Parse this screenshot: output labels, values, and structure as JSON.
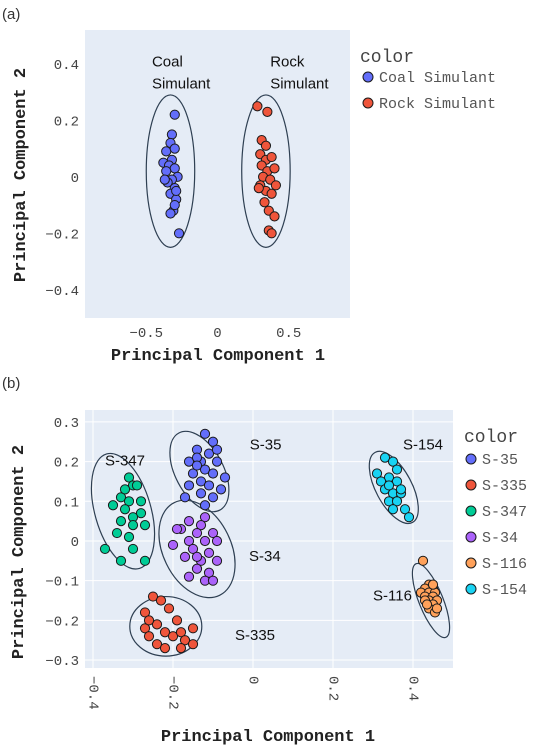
{
  "chart_data": [
    {
      "type": "scatter",
      "panel_label": "(a)",
      "xlabel": "Principal Component 1",
      "ylabel": "Principal Component 2",
      "xlim": [
        -0.93,
        0.93
      ],
      "ylim": [
        -0.5,
        0.52
      ],
      "xticks": [
        -0.5,
        0,
        0.5
      ],
      "xtick_labels": [
        "−0.5",
        "0",
        "0.5"
      ],
      "yticks": [
        0.4,
        0.2,
        0,
        -0.2,
        -0.4
      ],
      "ytick_labels": [
        "0.4",
        "0.2",
        "0",
        "−0.2",
        "−0.4"
      ],
      "grid": false,
      "legend_title": "color",
      "legend_position": "right",
      "annotations": [
        {
          "lines": [
            "Coal",
            "Simulant"
          ],
          "x": -0.46,
          "y": 0.39
        },
        {
          "lines": [
            "Rock",
            "Simulant"
          ],
          "x": 0.37,
          "y": 0.39
        }
      ],
      "ellipses": [
        {
          "cx": -0.33,
          "cy": 0.02,
          "rx": 0.17,
          "ry": 0.27
        },
        {
          "cx": 0.34,
          "cy": 0.02,
          "rx": 0.17,
          "ry": 0.27
        }
      ],
      "series": [
        {
          "name": "Coal Simulant",
          "color": "#636efa",
          "points": [
            [
              -0.3,
              0.22
            ],
            [
              -0.32,
              0.15
            ],
            [
              -0.33,
              0.12
            ],
            [
              -0.36,
              0.09
            ],
            [
              -0.3,
              0.1
            ],
            [
              -0.32,
              0.06
            ],
            [
              -0.38,
              0.05
            ],
            [
              -0.34,
              0.04
            ],
            [
              -0.3,
              0.03
            ],
            [
              -0.28,
              0.0
            ],
            [
              -0.32,
              -0.01
            ],
            [
              -0.36,
              0.02
            ],
            [
              -0.35,
              -0.02
            ],
            [
              -0.3,
              -0.04
            ],
            [
              -0.33,
              -0.06
            ],
            [
              -0.29,
              -0.08
            ],
            [
              -0.31,
              -0.12
            ],
            [
              -0.3,
              -0.1
            ],
            [
              -0.33,
              -0.13
            ],
            [
              -0.27,
              -0.2
            ],
            [
              -0.37,
              -0.01
            ],
            [
              -0.29,
              -0.05
            ]
          ]
        },
        {
          "name": "Rock Simulant",
          "color": "#ef553b",
          "points": [
            [
              0.28,
              0.25
            ],
            [
              0.35,
              0.23
            ],
            [
              0.31,
              0.13
            ],
            [
              0.34,
              0.11
            ],
            [
              0.3,
              0.08
            ],
            [
              0.34,
              0.06
            ],
            [
              0.38,
              0.07
            ],
            [
              0.31,
              0.04
            ],
            [
              0.35,
              0.02
            ],
            [
              0.32,
              0.0
            ],
            [
              0.37,
              -0.01
            ],
            [
              0.3,
              -0.03
            ],
            [
              0.34,
              -0.05
            ],
            [
              0.38,
              -0.06
            ],
            [
              0.33,
              -0.09
            ],
            [
              0.36,
              -0.12
            ],
            [
              0.4,
              -0.14
            ],
            [
              0.36,
              -0.19
            ],
            [
              0.38,
              -0.2
            ],
            [
              0.4,
              0.03
            ],
            [
              0.29,
              -0.04
            ],
            [
              0.41,
              -0.03
            ]
          ]
        }
      ]
    },
    {
      "type": "scatter",
      "panel_label": "(b)",
      "xlabel": "Principal Component 1",
      "ylabel": "Principal Component 2",
      "xlim": [
        -0.42,
        0.5
      ],
      "ylim": [
        -0.32,
        0.33
      ],
      "xticks": [
        -0.4,
        -0.2,
        0,
        0.2,
        0.4
      ],
      "xtick_labels": [
        "−0.4",
        "−0.2",
        "0",
        "0.2",
        "0.4"
      ],
      "yticks": [
        0.3,
        0.2,
        0.1,
        0,
        -0.1,
        -0.2,
        -0.3
      ],
      "ytick_labels": [
        "0.3",
        "0.2",
        "0.1",
        "0",
        "−0.1",
        "−0.2",
        "−0.3"
      ],
      "grid": true,
      "legend_title": "color",
      "legend_position": "right",
      "annotations": [
        {
          "lines": [
            "S-35"
          ],
          "x": -0.008,
          "y": 0.23
        },
        {
          "lines": [
            "S-154"
          ],
          "x": 0.375,
          "y": 0.23
        },
        {
          "lines": [
            "S-347"
          ],
          "x": -0.37,
          "y": 0.19
        },
        {
          "lines": [
            "S-34"
          ],
          "x": -0.01,
          "y": -0.05
        },
        {
          "lines": [
            "S-116"
          ],
          "x": 0.3,
          "y": -0.15
        },
        {
          "lines": [
            "S-335"
          ],
          "x": -0.045,
          "y": -0.25
        }
      ],
      "ellipses": [
        {
          "cx": -0.134,
          "cy": 0.175,
          "rx": 0.06,
          "ry": 0.11,
          "rot": -28
        },
        {
          "cx": 0.352,
          "cy": 0.135,
          "rx": 0.045,
          "ry": 0.1,
          "rot": -28
        },
        {
          "cx": -0.325,
          "cy": 0.075,
          "rx": 0.07,
          "ry": 0.15,
          "rot": -16
        },
        {
          "cx": -0.14,
          "cy": -0.02,
          "rx": 0.085,
          "ry": 0.13,
          "rot": -26
        },
        {
          "cx": 0.445,
          "cy": -0.15,
          "rx": 0.03,
          "ry": 0.1,
          "rot": -22
        },
        {
          "cx": -0.218,
          "cy": -0.215,
          "rx": 0.09,
          "ry": 0.075,
          "rot": 0
        }
      ],
      "series": [
        {
          "name": "S-35",
          "color": "#636efa",
          "points": [
            [
              -0.12,
              0.27
            ],
            [
              -0.1,
              0.25
            ],
            [
              -0.14,
              0.23
            ],
            [
              -0.11,
              0.22
            ],
            [
              -0.16,
              0.2
            ],
            [
              -0.13,
              0.2
            ],
            [
              -0.09,
              0.2
            ],
            [
              -0.12,
              0.18
            ],
            [
              -0.15,
              0.17
            ],
            [
              -0.1,
              0.17
            ],
            [
              -0.07,
              0.16
            ],
            [
              -0.13,
              0.15
            ],
            [
              -0.16,
              0.14
            ],
            [
              -0.11,
              0.14
            ],
            [
              -0.08,
              0.13
            ],
            [
              -0.13,
              0.12
            ],
            [
              -0.17,
              0.11
            ],
            [
              -0.1,
              0.11
            ],
            [
              -0.12,
              0.09
            ],
            [
              -0.14,
              0.21
            ],
            [
              -0.09,
              0.23
            ],
            [
              -0.14,
              0.19
            ]
          ]
        },
        {
          "name": "S-335",
          "color": "#ef553b",
          "points": [
            [
              -0.25,
              -0.14
            ],
            [
              -0.23,
              -0.15
            ],
            [
              -0.27,
              -0.18
            ],
            [
              -0.21,
              -0.17
            ],
            [
              -0.19,
              -0.2
            ],
            [
              -0.24,
              -0.21
            ],
            [
              -0.27,
              -0.22
            ],
            [
              -0.22,
              -0.23
            ],
            [
              -0.26,
              -0.24
            ],
            [
              -0.2,
              -0.24
            ],
            [
              -0.24,
              -0.26
            ],
            [
              -0.18,
              -0.23
            ],
            [
              -0.17,
              -0.25
            ],
            [
              -0.15,
              -0.26
            ],
            [
              -0.15,
              -0.22
            ],
            [
              -0.18,
              -0.27
            ],
            [
              -0.22,
              -0.27
            ],
            [
              -0.26,
              -0.2
            ]
          ]
        },
        {
          "name": "S-347",
          "color": "#00cc96",
          "points": [
            [
              -0.31,
              0.16
            ],
            [
              -0.3,
              0.14
            ],
            [
              -0.29,
              0.14
            ],
            [
              -0.33,
              0.11
            ],
            [
              -0.31,
              0.1
            ],
            [
              -0.28,
              0.1
            ],
            [
              -0.35,
              0.09
            ],
            [
              -0.32,
              0.08
            ],
            [
              -0.28,
              0.07
            ],
            [
              -0.3,
              0.06
            ],
            [
              -0.33,
              0.05
            ],
            [
              -0.3,
              0.04
            ],
            [
              -0.27,
              0.04
            ],
            [
              -0.34,
              0.02
            ],
            [
              -0.31,
              0.01
            ],
            [
              -0.37,
              -0.02
            ],
            [
              -0.33,
              -0.05
            ],
            [
              -0.27,
              -0.05
            ],
            [
              -0.3,
              -0.02
            ],
            [
              -0.32,
              0.13
            ]
          ]
        },
        {
          "name": "S-34",
          "color": "#ab63fa",
          "points": [
            [
              -0.12,
              0.06
            ],
            [
              -0.16,
              0.05
            ],
            [
              -0.13,
              0.04
            ],
            [
              -0.18,
              0.03
            ],
            [
              -0.14,
              0.02
            ],
            [
              -0.1,
              0.02
            ],
            [
              -0.16,
              0.0
            ],
            [
              -0.12,
              0.0
            ],
            [
              -0.2,
              -0.01
            ],
            [
              -0.15,
              -0.02
            ],
            [
              -0.11,
              -0.03
            ],
            [
              -0.17,
              -0.04
            ],
            [
              -0.13,
              -0.05
            ],
            [
              -0.09,
              -0.05
            ],
            [
              -0.14,
              -0.07
            ],
            [
              -0.11,
              -0.08
            ],
            [
              -0.16,
              -0.09
            ],
            [
              -0.12,
              -0.1
            ],
            [
              -0.1,
              -0.1
            ],
            [
              -0.14,
              -0.04
            ],
            [
              -0.19,
              0.03
            ],
            [
              -0.09,
              0.0
            ]
          ]
        },
        {
          "name": "S-116",
          "color": "#ffa15a",
          "points": [
            [
              0.425,
              -0.05
            ],
            [
              0.44,
              -0.11
            ],
            [
              0.45,
              -0.12
            ],
            [
              0.43,
              -0.12
            ],
            [
              0.42,
              -0.13
            ],
            [
              0.44,
              -0.13
            ],
            [
              0.455,
              -0.13
            ],
            [
              0.43,
              -0.14
            ],
            [
              0.45,
              -0.14
            ],
            [
              0.44,
              -0.15
            ],
            [
              0.46,
              -0.15
            ],
            [
              0.43,
              -0.15
            ],
            [
              0.45,
              -0.16
            ],
            [
              0.44,
              -0.17
            ],
            [
              0.455,
              -0.18
            ],
            [
              0.46,
              -0.17
            ],
            [
              0.45,
              -0.11
            ],
            [
              0.435,
              -0.16
            ]
          ]
        },
        {
          "name": "S-154",
          "color": "#19d3f3",
          "points": [
            [
              0.33,
              0.21
            ],
            [
              0.35,
              0.2
            ],
            [
              0.31,
              0.17
            ],
            [
              0.34,
              0.16
            ],
            [
              0.32,
              0.15
            ],
            [
              0.36,
              0.15
            ],
            [
              0.33,
              0.13
            ],
            [
              0.35,
              0.12
            ],
            [
              0.37,
              0.12
            ],
            [
              0.34,
              0.1
            ],
            [
              0.36,
              0.1
            ],
            [
              0.38,
              0.08
            ],
            [
              0.35,
              0.08
            ],
            [
              0.39,
              0.06
            ],
            [
              0.37,
              0.13
            ],
            [
              0.34,
              0.14
            ],
            [
              0.36,
              0.18
            ]
          ]
        }
      ]
    }
  ]
}
